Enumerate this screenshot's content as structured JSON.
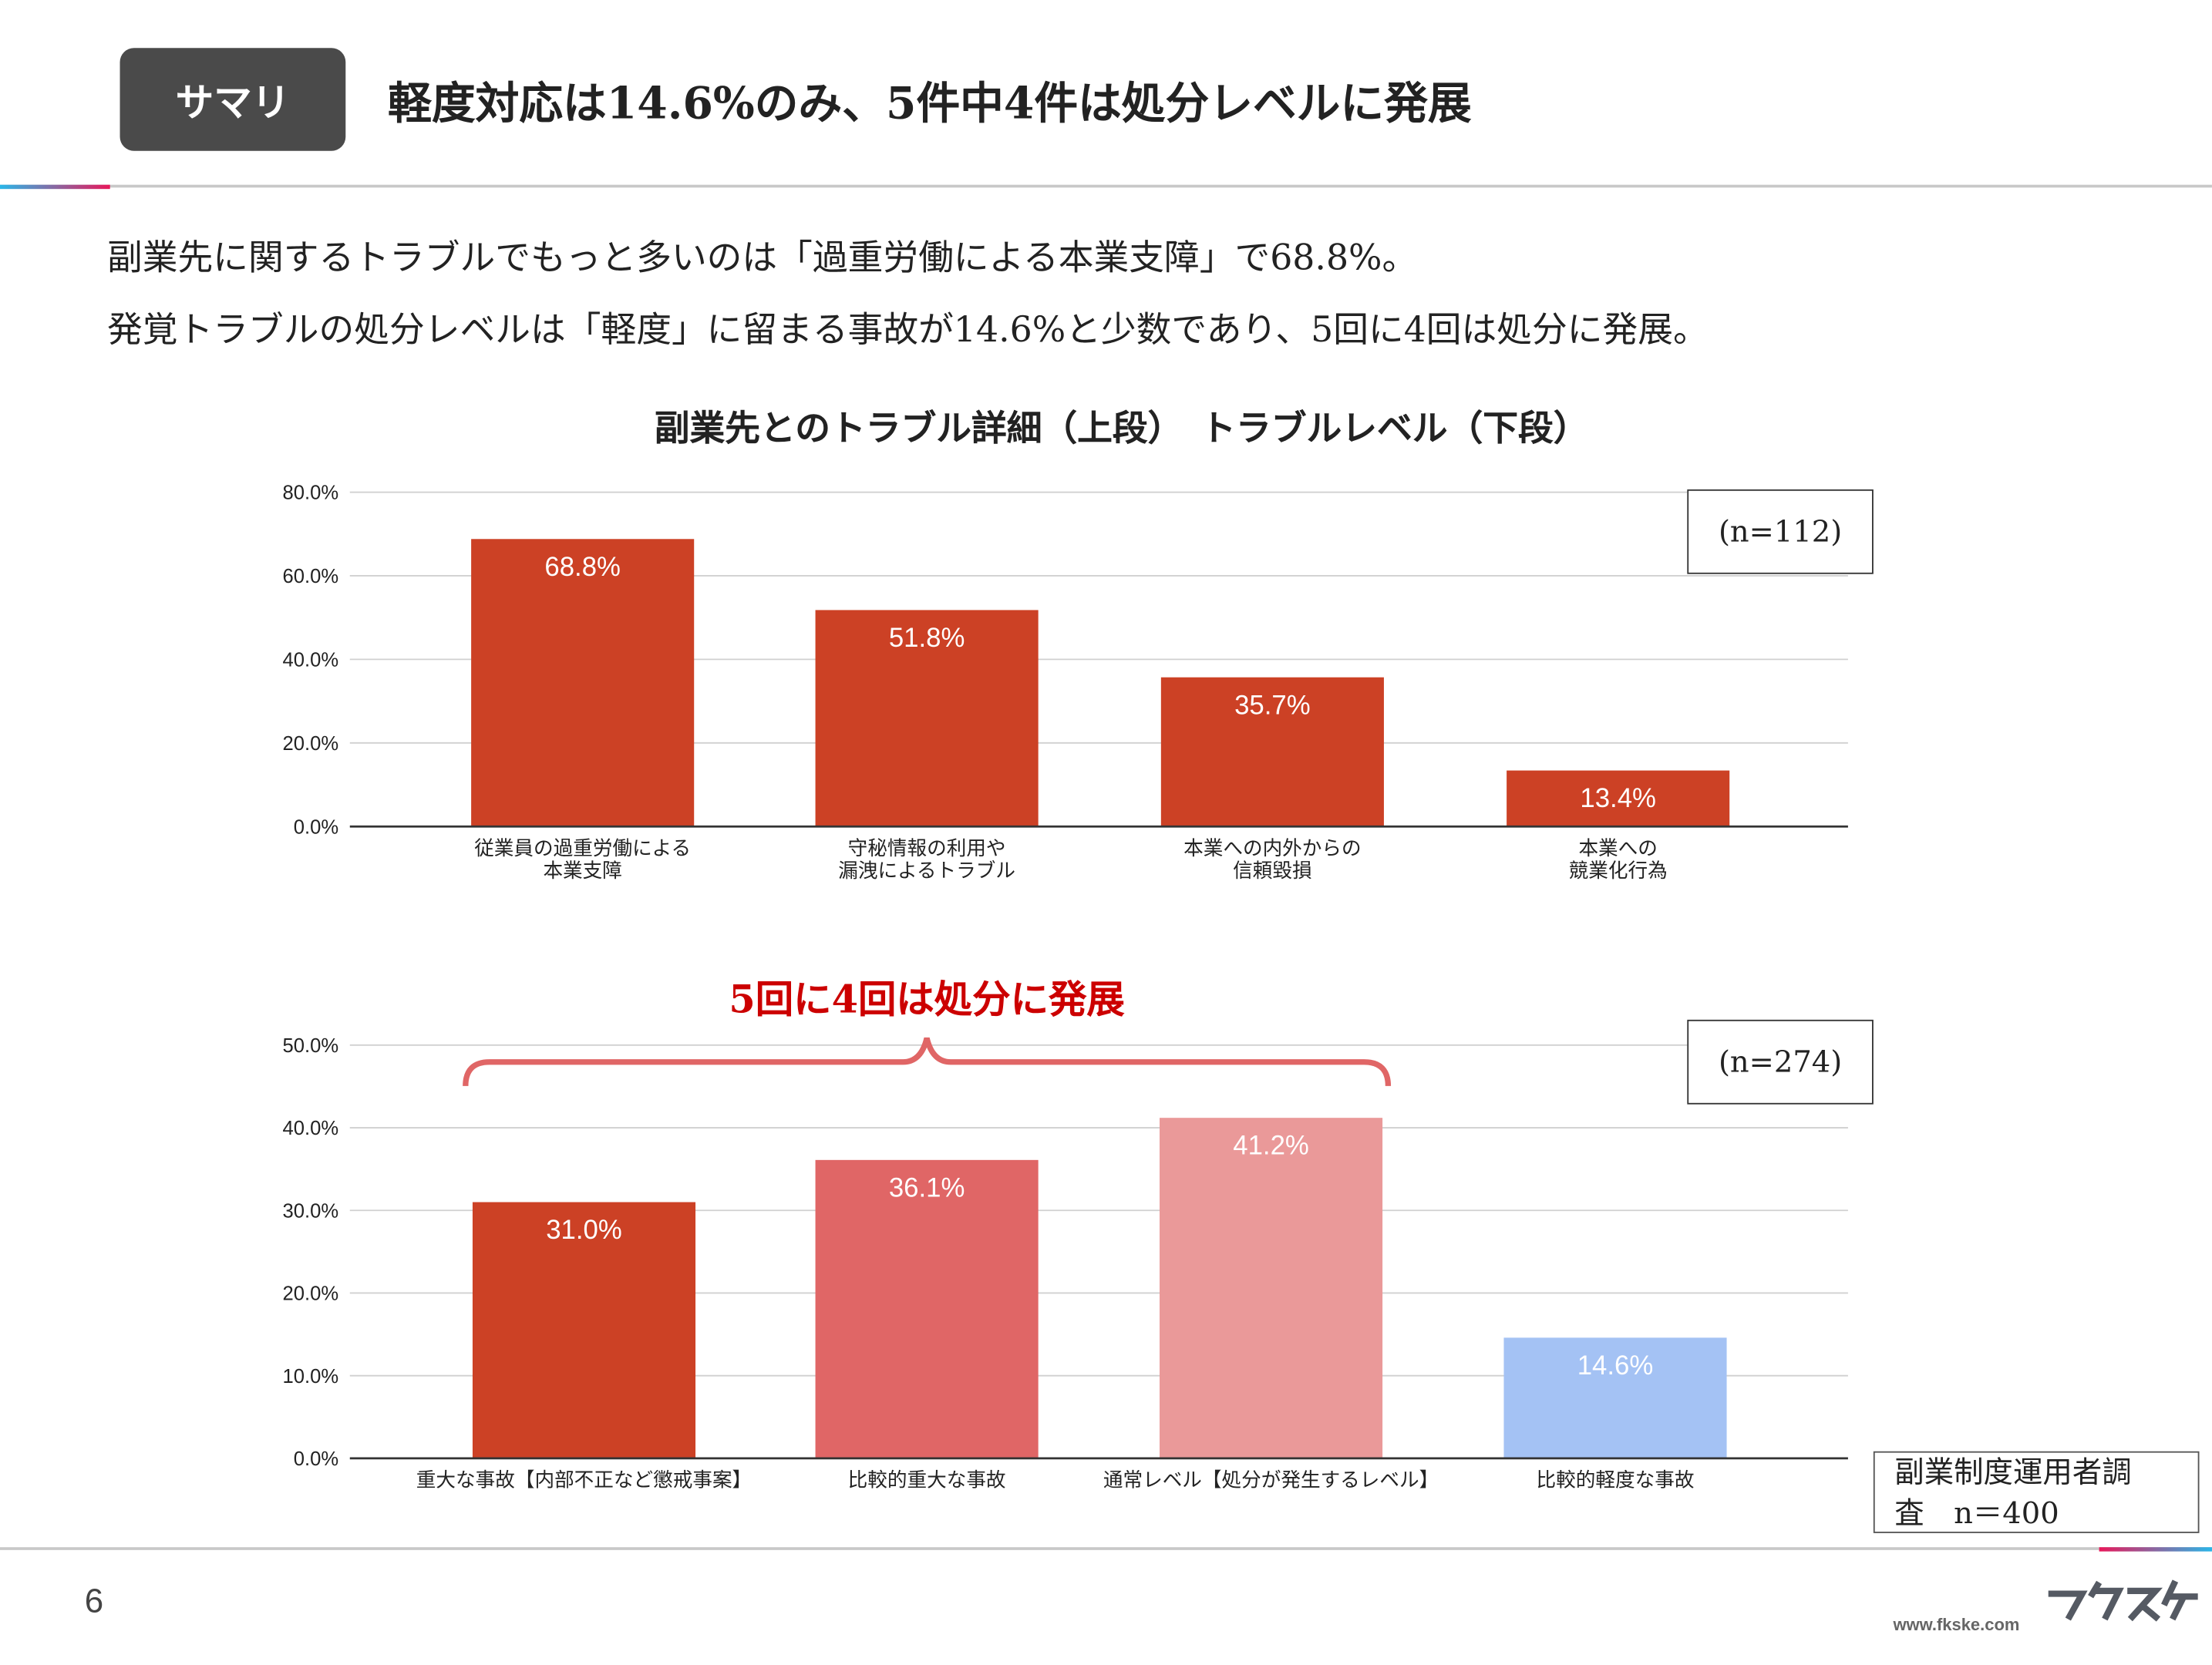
{
  "header": {
    "tag": "サマリ",
    "title": "軽度対応は14.6%のみ、5件中4件は処分レベルに発展"
  },
  "body": {
    "line1": "副業先に関するトラブルでもっと多いのは「過重労働による本業支障」で68.8%。",
    "line2": "発覚トラブルの処分レベルは「軽度」に留まる事故が14.6%と少数であり、5回に4回は処分に発展。"
  },
  "chart_title": "副業先とのトラブル詳細（上段）　トラブルレベル（下段）",
  "annotation": "5回に4回は処分に発展",
  "source": {
    "line1": "副業制度運用者調",
    "line2": "査　n＝400"
  },
  "footer": {
    "page": "6",
    "url": "www.fkske.com",
    "logo": "フクスケ"
  },
  "chart_data": [
    {
      "type": "bar",
      "n_label": "(n=112)",
      "categories": [
        [
          "従業員の過重労働による",
          "本業支障"
        ],
        [
          "守秘情報の利用や",
          "漏洩によるトラブル"
        ],
        [
          "本業への内外からの",
          "信頼毀損"
        ],
        [
          "本業への",
          "競業化行為"
        ]
      ],
      "values": [
        68.8,
        51.8,
        35.7,
        13.4
      ],
      "data_labels": [
        "68.8%",
        "51.8%",
        "35.7%",
        "13.4%"
      ],
      "colors": [
        "#cc4125",
        "#cc4125",
        "#cc4125",
        "#cc4125"
      ],
      "ylim": [
        0,
        80
      ],
      "yticks": [
        "0.0%",
        "20.0%",
        "40.0%",
        "60.0%",
        "80.0%"
      ],
      "grid": true
    },
    {
      "type": "bar",
      "n_label": "(n=274)",
      "categories": [
        [
          "重大な事故【内部不正など懲戒事案】"
        ],
        [
          "比較的重大な事故"
        ],
        [
          "通常レベル【処分が発生するレベル】"
        ],
        [
          "比較的軽度な事故"
        ]
      ],
      "values": [
        31.0,
        36.1,
        41.2,
        14.6
      ],
      "data_labels": [
        "31.0%",
        "36.1%",
        "41.2%",
        "14.6%"
      ],
      "colors": [
        "#cc4125",
        "#e06666",
        "#ea9999",
        "#a4c2f4"
      ],
      "ylim": [
        0,
        50
      ],
      "yticks": [
        "0.0%",
        "10.0%",
        "20.0%",
        "30.0%",
        "40.0%",
        "50.0%"
      ],
      "grid": true
    }
  ]
}
